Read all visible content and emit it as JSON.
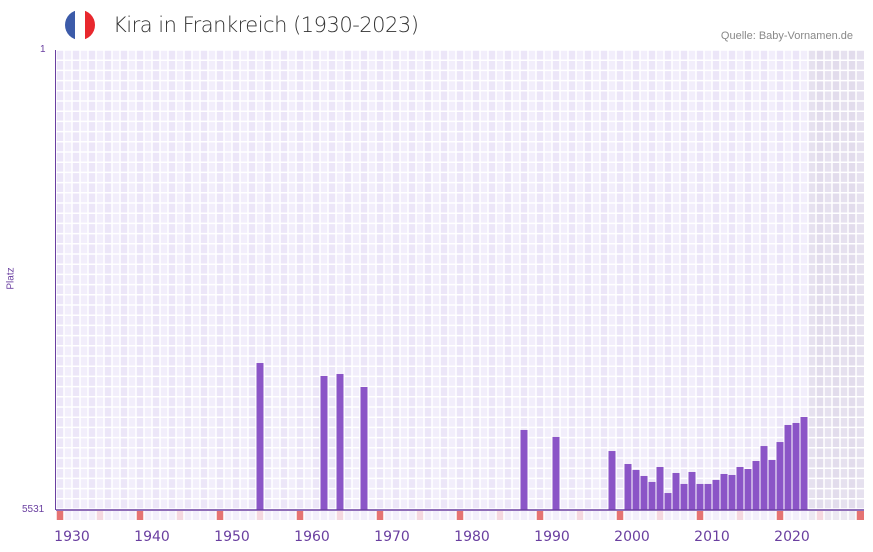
{
  "header": {
    "title": "Kira in Frankreich (1930-2023)",
    "source": "Quelle: Baby-Vornamen.de",
    "flag_colors": [
      "#3c5ba9",
      "#ffffff",
      "#e8282e"
    ]
  },
  "chart_data": {
    "type": "bar",
    "title": "Kira in Frankreich (1930-2023)",
    "xlabel": "",
    "ylabel": "Platz",
    "ylim": [
      5531,
      1
    ],
    "y_tick_labels": [
      "1",
      "5531"
    ],
    "xlim": [
      1930,
      2030
    ],
    "x_tick_labels": [
      "1930",
      "1940",
      "1950",
      "1960",
      "1970",
      "1980",
      "1990",
      "2000",
      "2010",
      "2020"
    ],
    "data_end_year": 2023,
    "bar_color": "#8b55c7",
    "points": [
      {
        "year": 1955,
        "rank": 3764
      },
      {
        "year": 1963,
        "rank": 3920
      },
      {
        "year": 1965,
        "rank": 3896
      },
      {
        "year": 1968,
        "rank": 4052
      },
      {
        "year": 1988,
        "rank": 4569
      },
      {
        "year": 1992,
        "rank": 4653
      },
      {
        "year": 1999,
        "rank": 4822
      },
      {
        "year": 2001,
        "rank": 4978
      },
      {
        "year": 2002,
        "rank": 5050
      },
      {
        "year": 2003,
        "rank": 5122
      },
      {
        "year": 2004,
        "rank": 5194
      },
      {
        "year": 2005,
        "rank": 5014
      },
      {
        "year": 2006,
        "rank": 5327
      },
      {
        "year": 2007,
        "rank": 5086
      },
      {
        "year": 2008,
        "rank": 5218
      },
      {
        "year": 2009,
        "rank": 5074
      },
      {
        "year": 2010,
        "rank": 5218
      },
      {
        "year": 2011,
        "rank": 5218
      },
      {
        "year": 2012,
        "rank": 5170
      },
      {
        "year": 2013,
        "rank": 5098
      },
      {
        "year": 2014,
        "rank": 5110
      },
      {
        "year": 2015,
        "rank": 5014
      },
      {
        "year": 2016,
        "rank": 5038
      },
      {
        "year": 2017,
        "rank": 4942
      },
      {
        "year": 2018,
        "rank": 4762
      },
      {
        "year": 2019,
        "rank": 4930
      },
      {
        "year": 2020,
        "rank": 4714
      },
      {
        "year": 2021,
        "rank": 4509
      },
      {
        "year": 2022,
        "rank": 4485
      },
      {
        "year": 2023,
        "rank": 4413
      }
    ]
  }
}
